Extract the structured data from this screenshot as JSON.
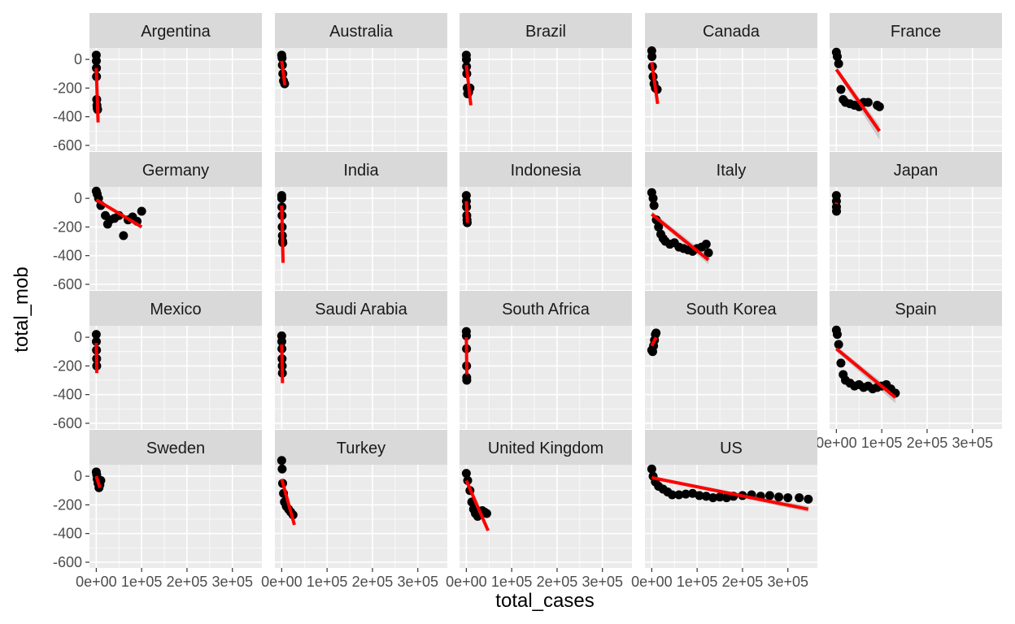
{
  "chart_data": {
    "type": "scatter",
    "layout": "facet_wrap",
    "xlabel": "total_cases",
    "ylabel": "total_mob",
    "xlim": [
      -15000,
      365000
    ],
    "ylim": [
      -640,
      80
    ],
    "x_ticks": [
      0,
      100000,
      200000,
      300000
    ],
    "x_tick_labels": [
      "0e+00",
      "1e+05",
      "2e+05",
      "3e+05"
    ],
    "y_ticks": [
      0,
      -200,
      -400,
      -600
    ],
    "y_tick_labels": [
      "0",
      "-200",
      "-400",
      "-600"
    ],
    "grid": true,
    "colors": {
      "panel_bg": "#ebebeb",
      "grid_major": "#ffffff",
      "strip_bg": "#d9d9d9",
      "points": "#000000",
      "fit_line": "#ff0000",
      "ci_band": "#bdbdbd"
    },
    "panels": [
      {
        "name": "Argentina",
        "points": [
          [
            0,
            30
          ],
          [
            200,
            -10
          ],
          [
            400,
            -60
          ],
          [
            600,
            -120
          ],
          [
            1000,
            -280
          ],
          [
            1500,
            -320
          ],
          [
            2000,
            -340
          ],
          [
            3000,
            -350
          ]
        ],
        "fit": [
          [
            0,
            -60
          ],
          [
            4000,
            -440
          ]
        ]
      },
      {
        "name": "Australia",
        "points": [
          [
            0,
            30
          ],
          [
            800,
            10
          ],
          [
            1500,
            -40
          ],
          [
            2500,
            -100
          ],
          [
            4000,
            -150
          ],
          [
            6500,
            -170
          ]
        ],
        "fit": [
          [
            0,
            -10
          ],
          [
            7000,
            -180
          ]
        ]
      },
      {
        "name": "Brazil",
        "points": [
          [
            0,
            30
          ],
          [
            200,
            0
          ],
          [
            500,
            -50
          ],
          [
            1000,
            -100
          ],
          [
            2000,
            -200
          ],
          [
            3000,
            -240
          ],
          [
            5000,
            -230
          ],
          [
            8000,
            -200
          ]
        ],
        "fit": [
          [
            0,
            -40
          ],
          [
            10000,
            -320
          ]
        ]
      },
      {
        "name": "Canada",
        "points": [
          [
            0,
            60
          ],
          [
            500,
            20
          ],
          [
            1500,
            -50
          ],
          [
            3000,
            -120
          ],
          [
            5000,
            -170
          ],
          [
            8000,
            -200
          ],
          [
            12000,
            -210
          ]
        ],
        "fit": [
          [
            0,
            -20
          ],
          [
            13000,
            -310
          ]
        ]
      },
      {
        "name": "France",
        "points": [
          [
            0,
            50
          ],
          [
            2000,
            20
          ],
          [
            5000,
            -30
          ],
          [
            10000,
            -210
          ],
          [
            15000,
            -280
          ],
          [
            20000,
            -300
          ],
          [
            30000,
            -310
          ],
          [
            40000,
            -320
          ],
          [
            50000,
            -330
          ],
          [
            60000,
            -300
          ],
          [
            70000,
            -300
          ],
          [
            90000,
            -320
          ],
          [
            95000,
            -330
          ]
        ],
        "fit": [
          [
            0,
            -70
          ],
          [
            95000,
            -500
          ]
        ],
        "band": [
          [
            0,
            -50,
            -90
          ],
          [
            95000,
            -460,
            -560
          ]
        ]
      },
      {
        "name": "Germany",
        "points": [
          [
            0,
            50
          ],
          [
            2000,
            30
          ],
          [
            5000,
            0
          ],
          [
            10000,
            -50
          ],
          [
            20000,
            -120
          ],
          [
            25000,
            -180
          ],
          [
            30000,
            -150
          ],
          [
            40000,
            -140
          ],
          [
            50000,
            -120
          ],
          [
            60000,
            -260
          ],
          [
            70000,
            -150
          ],
          [
            80000,
            -130
          ],
          [
            90000,
            -160
          ],
          [
            100000,
            -90
          ]
        ],
        "fit": [
          [
            0,
            -10
          ],
          [
            100000,
            -200
          ]
        ]
      },
      {
        "name": "India",
        "points": [
          [
            0,
            20
          ],
          [
            200,
            0
          ],
          [
            500,
            -60
          ],
          [
            800,
            -120
          ],
          [
            1000,
            -200
          ],
          [
            1500,
            -260
          ],
          [
            2000,
            -300
          ],
          [
            2500,
            -310
          ]
        ],
        "fit": [
          [
            0,
            -50
          ],
          [
            3000,
            -450
          ]
        ]
      },
      {
        "name": "Indonesia",
        "points": [
          [
            0,
            20
          ],
          [
            200,
            -20
          ],
          [
            500,
            -60
          ],
          [
            1000,
            -120
          ],
          [
            1500,
            -150
          ],
          [
            2000,
            -170
          ]
        ],
        "fit": [
          [
            0,
            -20
          ],
          [
            2500,
            -170
          ]
        ]
      },
      {
        "name": "Italy",
        "points": [
          [
            0,
            40
          ],
          [
            3000,
            0
          ],
          [
            5000,
            -50
          ],
          [
            10000,
            -150
          ],
          [
            15000,
            -200
          ],
          [
            20000,
            -250
          ],
          [
            25000,
            -280
          ],
          [
            30000,
            -300
          ],
          [
            40000,
            -320
          ],
          [
            50000,
            -310
          ],
          [
            60000,
            -340
          ],
          [
            70000,
            -350
          ],
          [
            80000,
            -360
          ],
          [
            90000,
            -370
          ],
          [
            100000,
            -350
          ],
          [
            110000,
            -340
          ],
          [
            120000,
            -320
          ],
          [
            125000,
            -380
          ]
        ],
        "fit": [
          [
            0,
            -110
          ],
          [
            125000,
            -430
          ]
        ],
        "band": [
          [
            0,
            -90,
            -130
          ],
          [
            125000,
            -400,
            -460
          ]
        ]
      },
      {
        "name": "Japan",
        "points": [
          [
            0,
            20
          ],
          [
            100,
            -20
          ],
          [
            200,
            -60
          ],
          [
            300,
            -90
          ]
        ],
        "fit": [
          [
            0,
            -40
          ],
          [
            800,
            -30
          ]
        ]
      },
      {
        "name": "Mexico",
        "points": [
          [
            0,
            20
          ],
          [
            200,
            -30
          ],
          [
            500,
            -90
          ],
          [
            800,
            -150
          ],
          [
            1000,
            -200
          ]
        ],
        "fit": [
          [
            0,
            -40
          ],
          [
            1200,
            -250
          ]
        ]
      },
      {
        "name": "Saudi Arabia",
        "points": [
          [
            0,
            10
          ],
          [
            200,
            -30
          ],
          [
            500,
            -80
          ],
          [
            800,
            -150
          ],
          [
            1200,
            -200
          ],
          [
            1500,
            -250
          ]
        ],
        "fit": [
          [
            0,
            -50
          ],
          [
            1800,
            -320
          ]
        ]
      },
      {
        "name": "South Africa",
        "points": [
          [
            0,
            40
          ],
          [
            200,
            10
          ],
          [
            400,
            -80
          ],
          [
            600,
            -200
          ],
          [
            800,
            -280
          ],
          [
            1000,
            -300
          ]
        ],
        "fit": [
          [
            0,
            0
          ],
          [
            1200,
            -260
          ]
        ]
      },
      {
        "name": "South Korea",
        "points": [
          [
            0,
            -90
          ],
          [
            2000,
            -100
          ],
          [
            4000,
            -60
          ],
          [
            6000,
            -20
          ],
          [
            8000,
            20
          ],
          [
            9500,
            30
          ]
        ],
        "fit": [
          [
            0,
            -60
          ],
          [
            9500,
            0
          ]
        ]
      },
      {
        "name": "Spain",
        "points": [
          [
            0,
            50
          ],
          [
            2000,
            20
          ],
          [
            5000,
            -50
          ],
          [
            10000,
            -180
          ],
          [
            15000,
            -260
          ],
          [
            20000,
            -300
          ],
          [
            30000,
            -320
          ],
          [
            40000,
            -340
          ],
          [
            50000,
            -330
          ],
          [
            60000,
            -350
          ],
          [
            70000,
            -340
          ],
          [
            80000,
            -360
          ],
          [
            90000,
            -350
          ],
          [
            100000,
            -340
          ],
          [
            110000,
            -330
          ],
          [
            120000,
            -360
          ],
          [
            130000,
            -390
          ]
        ],
        "fit": [
          [
            0,
            -80
          ],
          [
            130000,
            -420
          ]
        ],
        "band": [
          [
            0,
            -60,
            -100
          ],
          [
            130000,
            -390,
            -460
          ]
        ]
      },
      {
        "name": "Sweden",
        "points": [
          [
            0,
            30
          ],
          [
            1000,
            10
          ],
          [
            2000,
            -20
          ],
          [
            4000,
            -50
          ],
          [
            6000,
            -80
          ],
          [
            8000,
            -60
          ],
          [
            10000,
            -30
          ]
        ],
        "fit": [
          [
            0,
            0
          ],
          [
            8000,
            -80
          ]
        ]
      },
      {
        "name": "Turkey",
        "points": [
          [
            0,
            110
          ],
          [
            1000,
            50
          ],
          [
            2000,
            -50
          ],
          [
            4000,
            -120
          ],
          [
            6000,
            -180
          ],
          [
            10000,
            -210
          ],
          [
            15000,
            -230
          ],
          [
            20000,
            -250
          ],
          [
            25000,
            -270
          ]
        ],
        "fit": [
          [
            0,
            -20
          ],
          [
            28000,
            -340
          ]
        ]
      },
      {
        "name": "United Kingdom",
        "points": [
          [
            0,
            20
          ],
          [
            3000,
            -30
          ],
          [
            8000,
            -100
          ],
          [
            12000,
            -180
          ],
          [
            16000,
            -230
          ],
          [
            20000,
            -260
          ],
          [
            25000,
            -280
          ],
          [
            30000,
            -260
          ],
          [
            35000,
            -240
          ],
          [
            40000,
            -250
          ],
          [
            45000,
            -260
          ]
        ],
        "fit": [
          [
            0,
            -30
          ],
          [
            48000,
            -380
          ]
        ]
      },
      {
        "name": "US",
        "points": [
          [
            0,
            50
          ],
          [
            3000,
            0
          ],
          [
            8000,
            -40
          ],
          [
            15000,
            -70
          ],
          [
            25000,
            -90
          ],
          [
            35000,
            -110
          ],
          [
            45000,
            -130
          ],
          [
            60000,
            -130
          ],
          [
            75000,
            -125
          ],
          [
            90000,
            -120
          ],
          [
            105000,
            -135
          ],
          [
            120000,
            -140
          ],
          [
            135000,
            -150
          ],
          [
            150000,
            -145
          ],
          [
            165000,
            -150
          ],
          [
            180000,
            -140
          ],
          [
            200000,
            -135
          ],
          [
            220000,
            -130
          ],
          [
            240000,
            -140
          ],
          [
            260000,
            -135
          ],
          [
            280000,
            -145
          ],
          [
            300000,
            -150
          ],
          [
            325000,
            -150
          ],
          [
            345000,
            -160
          ]
        ],
        "fit": [
          [
            0,
            -10
          ],
          [
            345000,
            -230
          ]
        ],
        "band": [
          [
            0,
            0,
            -20
          ],
          [
            345000,
            -210,
            -250
          ]
        ]
      }
    ]
  }
}
